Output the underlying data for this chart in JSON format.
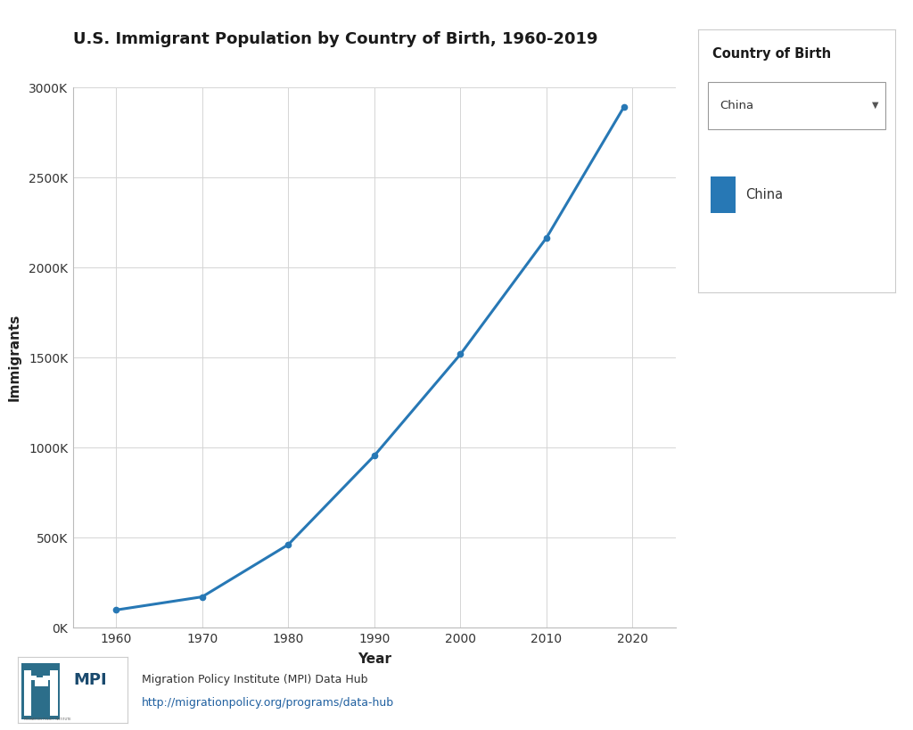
{
  "title": "U.S. Immigrant Population by Country of Birth, 1960-2019",
  "xlabel": "Year",
  "ylabel": "Immigrants",
  "line_color": "#2778b5",
  "line_label": "China",
  "years": [
    1960,
    1970,
    1980,
    1990,
    2000,
    2010,
    2019
  ],
  "values": [
    99000,
    172000,
    462000,
    956000,
    1519000,
    2166000,
    2893000
  ],
  "xlim": [
    1955,
    2025
  ],
  "ylim": [
    0,
    3000000
  ],
  "yticks": [
    0,
    500000,
    1000000,
    1500000,
    2000000,
    2500000,
    3000000
  ],
  "xticks": [
    1960,
    1970,
    1980,
    1990,
    2000,
    2010,
    2020
  ],
  "ytick_labels": [
    "0K",
    "500K",
    "1000K",
    "1500K",
    "2000K",
    "2500K",
    "3000K"
  ],
  "bg_color": "#ffffff",
  "grid_color": "#d5d5d5",
  "title_fontsize": 13,
  "axis_label_fontsize": 11,
  "tick_fontsize": 10,
  "legend_title": "Country of Birth",
  "legend_box_label": "China",
  "legend_box_color": "#2778b5",
  "dropdown_text": "China",
  "footer_text": "Migration Policy Institute (MPI) Data Hub",
  "footer_url": "http://migrationpolicy.org/programs/data-hub"
}
